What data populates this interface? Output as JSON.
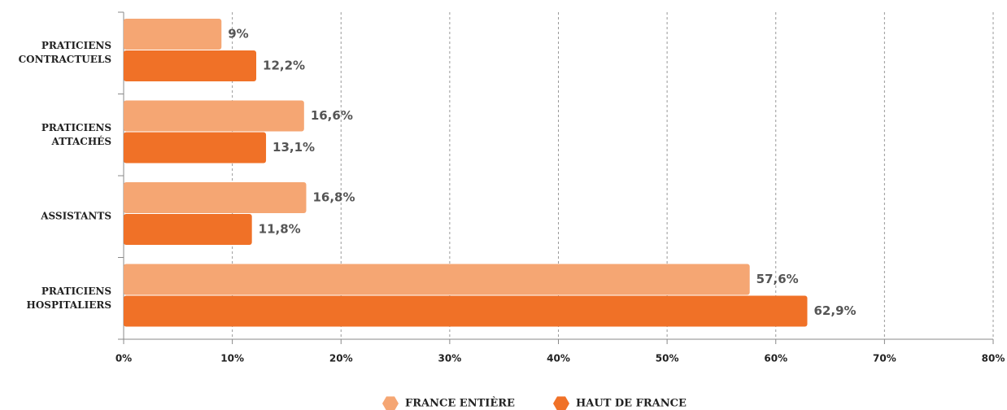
{
  "chart_data": {
    "type": "bar",
    "orientation": "horizontal",
    "categories": [
      "PRATICIENS CONTRACTUELS",
      "PRATICIENS ATTACHÉS",
      "ASSISTANTS",
      "PRATICIENS HOSPITALIERS"
    ],
    "series": [
      {
        "name": "FRANCE ENTIÈRE",
        "color": "#f5a673",
        "values": [
          9,
          16.6,
          16.8,
          57.6
        ],
        "value_labels": [
          "9%",
          "16,6%",
          "16,8%",
          "57,6%"
        ]
      },
      {
        "name": "HAUT DE FRANCE",
        "color": "#f07127",
        "values": [
          12.2,
          13.1,
          11.8,
          62.9
        ],
        "value_labels": [
          "12,2%",
          "13,1%",
          "11,8%",
          "62,9%"
        ]
      }
    ],
    "xlim": [
      0,
      80
    ],
    "xticks": [
      {
        "value": 0,
        "label": "0%"
      },
      {
        "value": 10,
        "label": "10%"
      },
      {
        "value": 20,
        "label": "20%"
      },
      {
        "value": 30,
        "label": "30%"
      },
      {
        "value": 40,
        "label": "40%"
      },
      {
        "value": 50,
        "label": "50%"
      },
      {
        "value": 60,
        "label": "60%"
      },
      {
        "value": 70,
        "label": "70%"
      },
      {
        "value": 80,
        "label": "80%"
      }
    ],
    "grid": true,
    "legend": "bottom"
  }
}
